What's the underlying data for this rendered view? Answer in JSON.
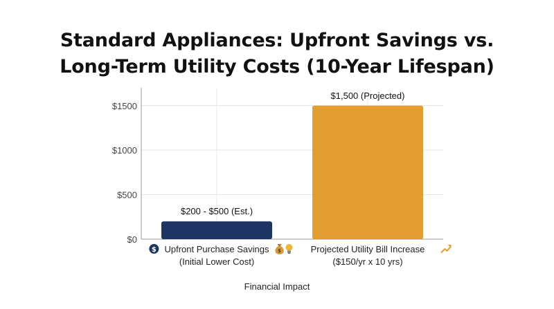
{
  "chart_data": {
    "type": "bar",
    "title_lines": [
      "Standard Appliances: Upfront Savings vs.",
      "Long-Term Utility Costs (10-Year Lifespan)"
    ],
    "xlabel": "Financial Impact",
    "ylabel": "",
    "ylim": [
      0,
      1700
    ],
    "yticks": [
      0,
      500,
      1000,
      1500
    ],
    "ytick_labels": [
      "$0",
      "$500",
      "$1000",
      "$1500"
    ],
    "grid": true,
    "categories": [
      {
        "lines": [
          "Upfront Purchase Savings",
          "(Initial Lower Cost)"
        ],
        "icon_before": "dollar-coin-icon",
        "icon_after": "money-bag-icon"
      },
      {
        "lines": [
          "Projected Utility Bill Increase",
          "($150/yr x 10 yrs)"
        ],
        "icon_before": "lightbulb-icon",
        "icon_after": "trend-up-icon"
      }
    ],
    "values": [
      200,
      1500
    ],
    "data_labels": [
      "$200 - $500 (Est.)",
      "$1,500 (Projected)"
    ],
    "colors": [
      "#1e3563",
      "#e39e32"
    ]
  }
}
